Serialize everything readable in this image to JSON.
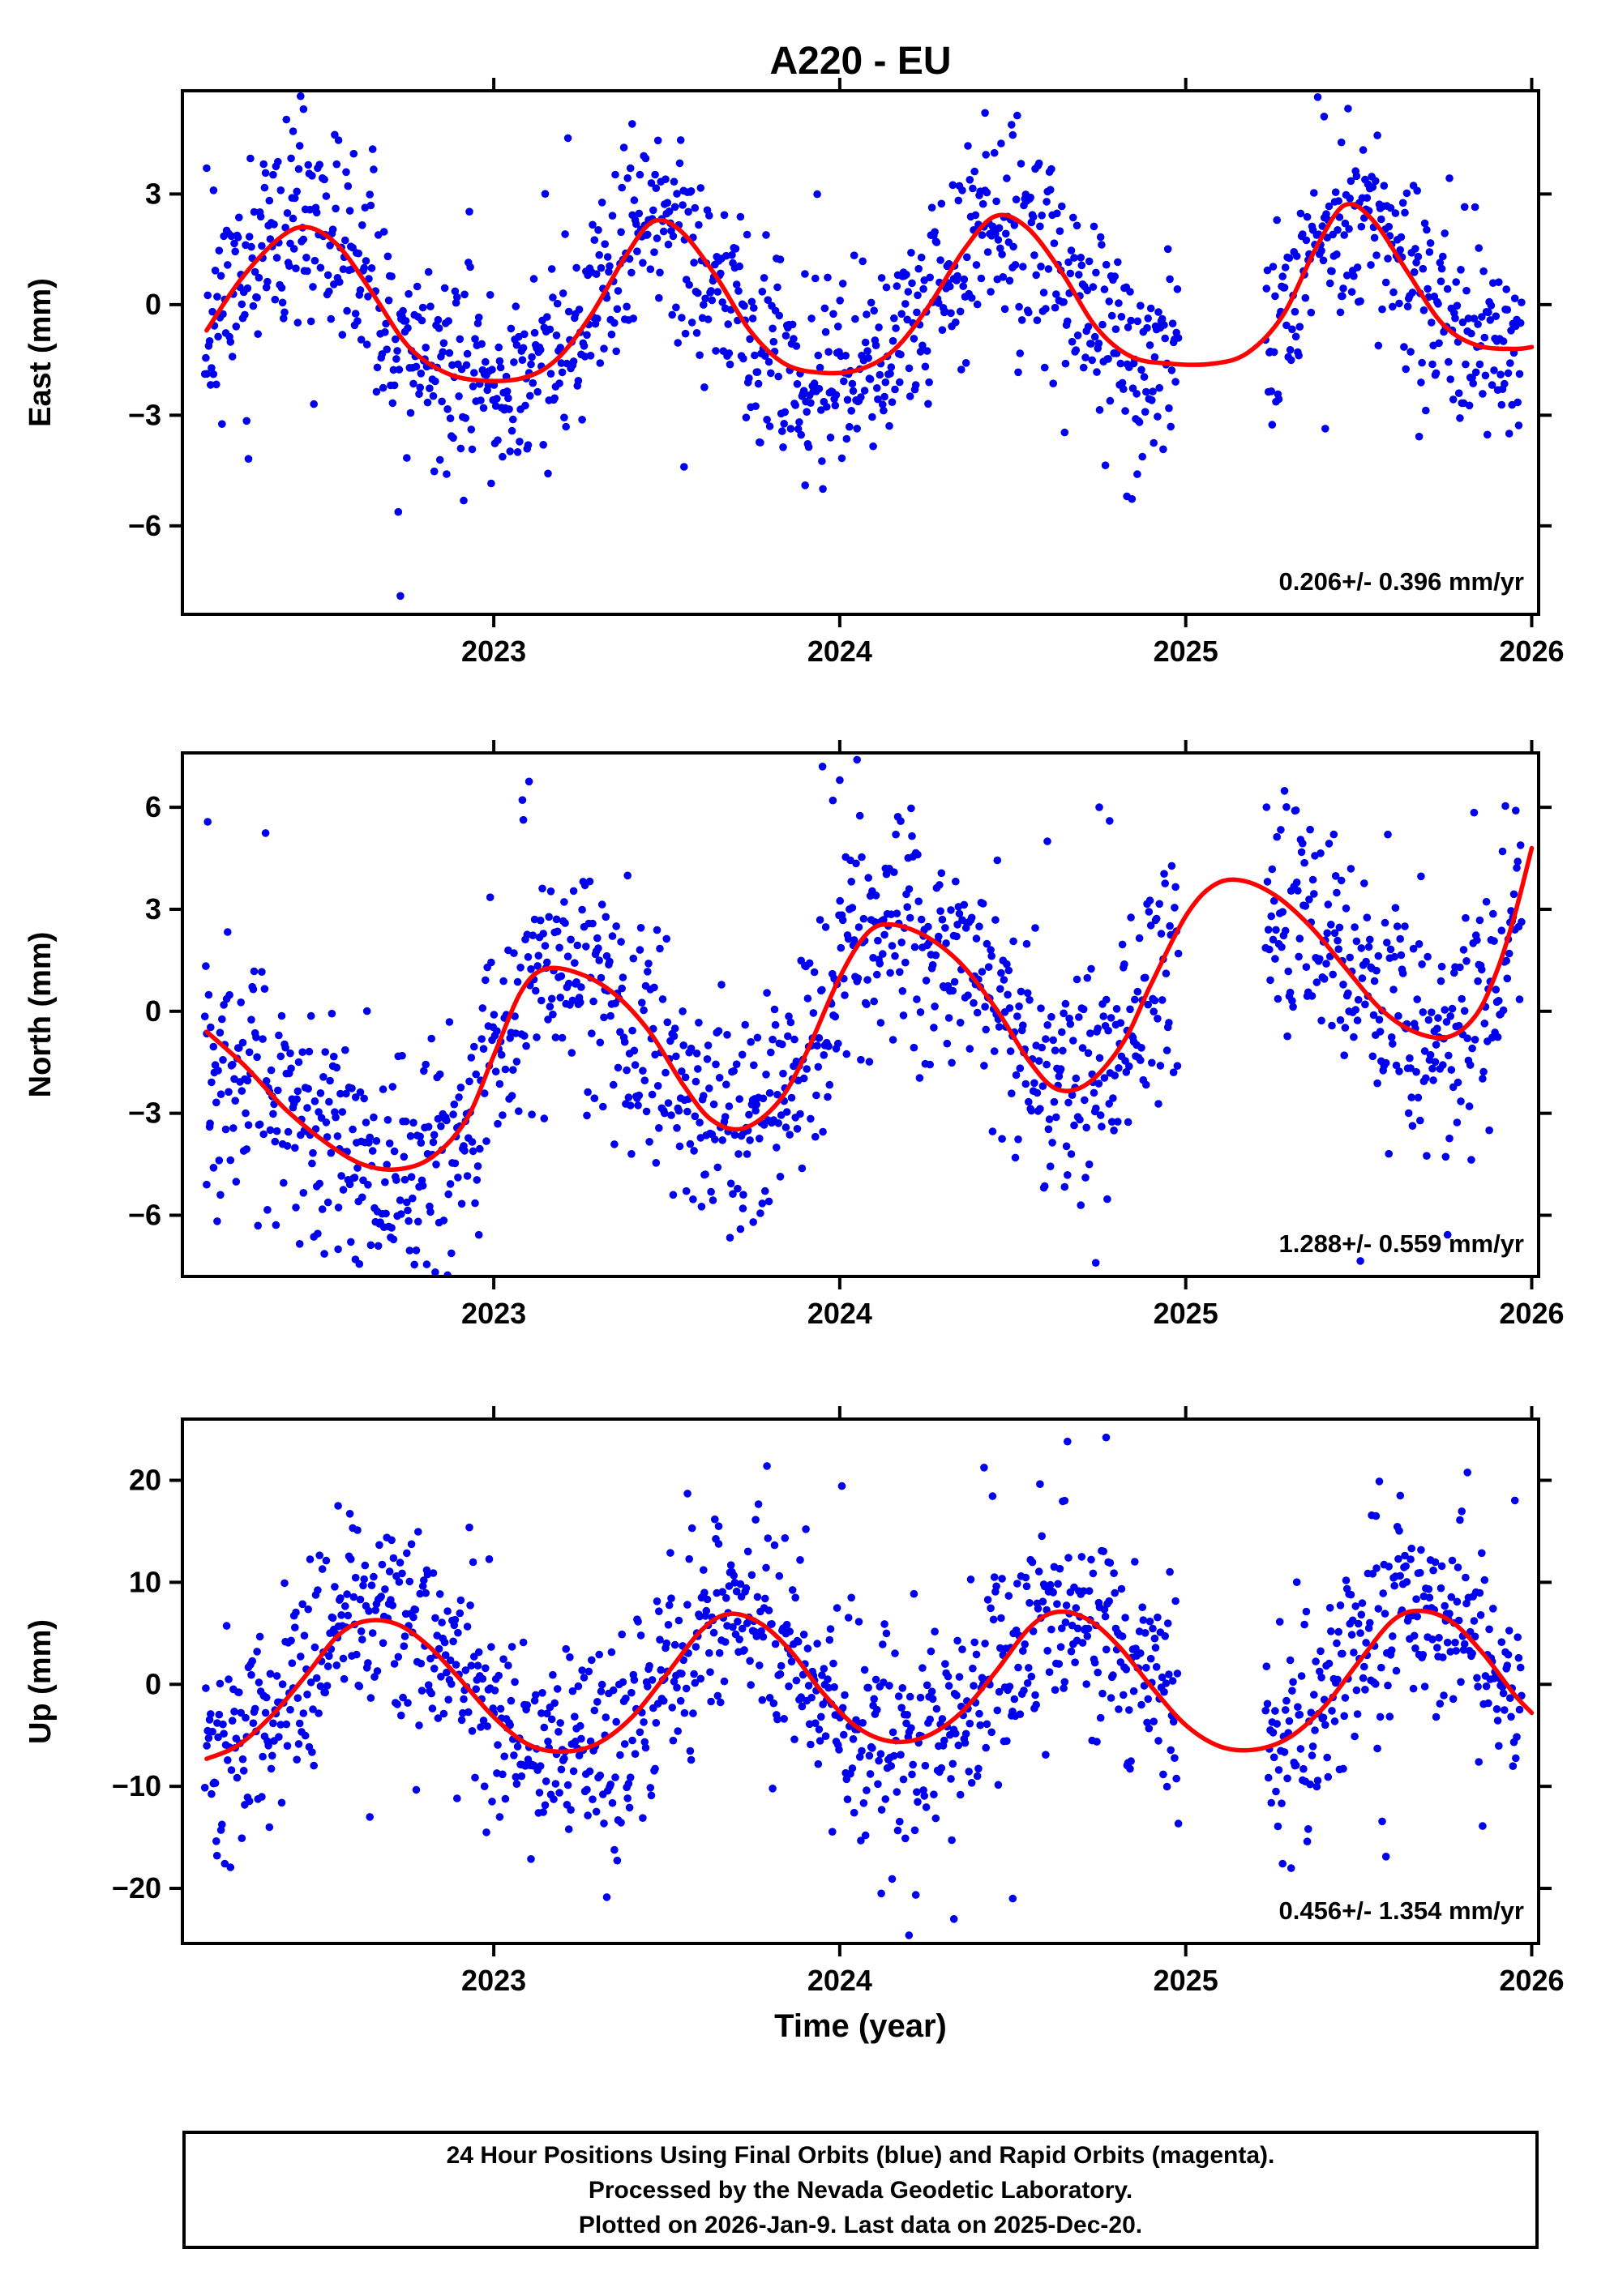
{
  "caption": {
    "lines": [
      "24 Hour Positions Using Final Orbits (blue) and Rapid Orbits (magenta).",
      "Processed by the Nevada Geodetic Laboratory.",
      "Plotted on 2026-Jan-9. Last data on 2025-Dec-20."
    ]
  },
  "chart_data": {
    "type": "scatter",
    "title": "A220 - EU",
    "xlabel": "Time (year)",
    "colors": {
      "points": "#0000ee",
      "curve": "#ff0000",
      "frame": "#000000"
    },
    "x_axis": {
      "min": 2022.1,
      "max": 2026.02,
      "ticks": [
        {
          "v": 2023,
          "label": "2023"
        },
        {
          "v": 2024,
          "label": "2024"
        },
        {
          "v": 2025,
          "label": "2025"
        },
        {
          "v": 2026,
          "label": "2026"
        }
      ]
    },
    "data_gap": [
      2024.98,
      2025.23
    ],
    "sampling": {
      "start": 2022.165,
      "end": 2025.972,
      "step_days": 1,
      "outlier_prob": 0.02,
      "outlier_scale": 2.6
    },
    "panels": [
      {
        "id": "east",
        "ylabel": "East (mm)",
        "annotation": "0.206+/- 0.396 mm/yr",
        "rate": 0.206,
        "rate_sigma": 0.396,
        "ylim": [
          -8.4,
          5.8
        ],
        "yticks": [
          {
            "v": 3,
            "label": "3"
          },
          {
            "v": 0,
            "label": "0"
          },
          {
            "v": -3,
            "label": "−3"
          },
          {
            "v": -6,
            "label": "−6"
          }
        ],
        "noise_sigma": 1.35,
        "seed": 11,
        "curve": [
          [
            2022.17,
            -0.7
          ],
          [
            2022.27,
            0.7
          ],
          [
            2022.38,
            1.8
          ],
          [
            2022.46,
            2.1
          ],
          [
            2022.55,
            1.6
          ],
          [
            2022.65,
            0.3
          ],
          [
            2022.75,
            -1.1
          ],
          [
            2022.85,
            -1.8
          ],
          [
            2022.95,
            -2.05
          ],
          [
            2023.08,
            -2.0
          ],
          [
            2023.18,
            -1.5
          ],
          [
            2023.28,
            -0.3
          ],
          [
            2023.38,
            1.3
          ],
          [
            2023.46,
            2.25
          ],
          [
            2023.54,
            2.0
          ],
          [
            2023.64,
            0.8
          ],
          [
            2023.74,
            -0.7
          ],
          [
            2023.84,
            -1.6
          ],
          [
            2023.95,
            -1.85
          ],
          [
            2024.06,
            -1.75
          ],
          [
            2024.16,
            -1.2
          ],
          [
            2024.26,
            0.0
          ],
          [
            2024.36,
            1.5
          ],
          [
            2024.45,
            2.4
          ],
          [
            2024.54,
            2.1
          ],
          [
            2024.64,
            0.9
          ],
          [
            2024.74,
            -0.6
          ],
          [
            2024.84,
            -1.4
          ],
          [
            2024.95,
            -1.6
          ],
          [
            2025.08,
            -1.6
          ],
          [
            2025.18,
            -1.3
          ],
          [
            2025.28,
            -0.3
          ],
          [
            2025.38,
            1.6
          ],
          [
            2025.46,
            2.7
          ],
          [
            2025.54,
            2.3
          ],
          [
            2025.64,
            0.9
          ],
          [
            2025.74,
            -0.5
          ],
          [
            2025.84,
            -1.1
          ],
          [
            2025.95,
            -1.2
          ],
          [
            2026.0,
            -1.15
          ]
        ],
        "extra_points": [
          [
            2022.73,
            -7.9
          ],
          [
            2022.17,
            3.7
          ],
          [
            2022.19,
            3.1
          ],
          [
            2022.42,
            4.7
          ],
          [
            2022.45,
            5.3
          ],
          [
            2023.4,
            4.9
          ],
          [
            2024.42,
            5.2
          ],
          [
            2024.5,
            4.6
          ],
          [
            2025.4,
            5.1
          ],
          [
            2025.45,
            4.4
          ],
          [
            2024.83,
            -5.2
          ],
          [
            2024.86,
            -4.6
          ],
          [
            2023.9,
            -4.9
          ],
          [
            2023.55,
            -4.4
          ]
        ]
      },
      {
        "id": "north",
        "ylabel": "North (mm)",
        "annotation": "1.288+/- 0.559 mm/yr",
        "rate": 1.288,
        "rate_sigma": 0.559,
        "ylim": [
          -7.8,
          7.6
        ],
        "yticks": [
          {
            "v": 6,
            "label": "6"
          },
          {
            "v": 3,
            "label": "3"
          },
          {
            "v": 0,
            "label": "0"
          },
          {
            "v": -3,
            "label": "−3"
          },
          {
            "v": -6,
            "label": "−6"
          }
        ],
        "noise_sigma": 1.7,
        "seed": 22,
        "curve": [
          [
            2022.17,
            -0.6
          ],
          [
            2022.28,
            -1.6
          ],
          [
            2022.4,
            -2.9
          ],
          [
            2022.52,
            -3.9
          ],
          [
            2022.62,
            -4.5
          ],
          [
            2022.72,
            -4.65
          ],
          [
            2022.82,
            -4.3
          ],
          [
            2022.92,
            -3.2
          ],
          [
            2023.0,
            -1.3
          ],
          [
            2023.08,
            0.6
          ],
          [
            2023.15,
            1.25
          ],
          [
            2023.25,
            1.1
          ],
          [
            2023.35,
            0.5
          ],
          [
            2023.45,
            -0.6
          ],
          [
            2023.55,
            -2.2
          ],
          [
            2023.63,
            -3.2
          ],
          [
            2023.72,
            -3.45
          ],
          [
            2023.82,
            -2.7
          ],
          [
            2023.9,
            -1.3
          ],
          [
            2024.0,
            1.0
          ],
          [
            2024.08,
            2.3
          ],
          [
            2024.15,
            2.55
          ],
          [
            2024.25,
            2.2
          ],
          [
            2024.35,
            1.4
          ],
          [
            2024.45,
            0.1
          ],
          [
            2024.55,
            -1.5
          ],
          [
            2024.63,
            -2.3
          ],
          [
            2024.72,
            -2.1
          ],
          [
            2024.82,
            -0.9
          ],
          [
            2024.9,
            0.8
          ],
          [
            2025.0,
            2.8
          ],
          [
            2025.08,
            3.7
          ],
          [
            2025.16,
            3.85
          ],
          [
            2025.26,
            3.4
          ],
          [
            2025.36,
            2.5
          ],
          [
            2025.46,
            1.3
          ],
          [
            2025.56,
            0.1
          ],
          [
            2025.66,
            -0.6
          ],
          [
            2025.76,
            -0.75
          ],
          [
            2025.84,
            -0.1
          ],
          [
            2025.9,
            1.2
          ],
          [
            2025.95,
            2.8
          ],
          [
            2026.0,
            4.8
          ]
        ],
        "extra_points": [
          [
            2024.74,
            -7.4
          ],
          [
            2022.17,
            -5.1
          ],
          [
            2022.19,
            -4.6
          ],
          [
            2022.21,
            -5.4
          ],
          [
            2022.18,
            -3.3
          ],
          [
            2023.95,
            7.2
          ],
          [
            2024.0,
            6.8
          ],
          [
            2024.05,
            7.4
          ],
          [
            2023.98,
            6.2
          ],
          [
            2024.6,
            5.0
          ],
          [
            2024.75,
            6.0
          ],
          [
            2024.78,
            5.6
          ],
          [
            2022.55,
            -7.0
          ],
          [
            2022.6,
            -7.3
          ],
          [
            2023.75,
            -6.2
          ],
          [
            2023.72,
            -5.8
          ]
        ]
      },
      {
        "id": "up",
        "ylabel": "Up (mm)",
        "annotation": "0.456+/- 1.354 mm/yr",
        "rate": 0.456,
        "rate_sigma": 1.354,
        "ylim": [
          -25.4,
          26.0
        ],
        "yticks": [
          {
            "v": 20,
            "label": "20"
          },
          {
            "v": 10,
            "label": "10"
          },
          {
            "v": 0,
            "label": "0"
          },
          {
            "v": -10,
            "label": "−10"
          },
          {
            "v": -20,
            "label": "−20"
          }
        ],
        "noise_sigma": 5.0,
        "seed": 33,
        "curve": [
          [
            2022.17,
            -7.3
          ],
          [
            2022.26,
            -6.0
          ],
          [
            2022.36,
            -3.0
          ],
          [
            2022.46,
            1.0
          ],
          [
            2022.55,
            4.8
          ],
          [
            2022.63,
            6.2
          ],
          [
            2022.72,
            5.9
          ],
          [
            2022.81,
            3.8
          ],
          [
            2022.9,
            0.6
          ],
          [
            2023.0,
            -3.2
          ],
          [
            2023.1,
            -5.9
          ],
          [
            2023.2,
            -6.6
          ],
          [
            2023.3,
            -5.8
          ],
          [
            2023.4,
            -3.2
          ],
          [
            2023.5,
            1.0
          ],
          [
            2023.6,
            5.3
          ],
          [
            2023.68,
            6.9
          ],
          [
            2023.77,
            6.0
          ],
          [
            2023.86,
            3.2
          ],
          [
            2023.95,
            -0.8
          ],
          [
            2024.05,
            -4.2
          ],
          [
            2024.15,
            -5.6
          ],
          [
            2024.25,
            -5.1
          ],
          [
            2024.35,
            -2.8
          ],
          [
            2024.45,
            1.2
          ],
          [
            2024.55,
            5.6
          ],
          [
            2024.63,
            7.1
          ],
          [
            2024.72,
            6.3
          ],
          [
            2024.81,
            3.6
          ],
          [
            2024.9,
            -0.2
          ],
          [
            2025.0,
            -4.0
          ],
          [
            2025.1,
            -6.1
          ],
          [
            2025.2,
            -6.4
          ],
          [
            2025.3,
            -5.2
          ],
          [
            2025.4,
            -2.2
          ],
          [
            2025.5,
            2.2
          ],
          [
            2025.6,
            6.3
          ],
          [
            2025.68,
            7.2
          ],
          [
            2025.77,
            6.1
          ],
          [
            2025.86,
            3.0
          ],
          [
            2025.95,
            -1.0
          ],
          [
            2026.0,
            -2.8
          ]
        ],
        "extra_points": [
          [
            2024.2,
            -24.6
          ],
          [
            2024.77,
            24.2
          ],
          [
            2024.33,
            -23.0
          ],
          [
            2024.12,
            -20.5
          ],
          [
            2022.2,
            -16.8
          ],
          [
            2025.62,
            18.5
          ],
          [
            2023.56,
            18.7
          ],
          [
            2024.5,
            -21.0
          ],
          [
            2022.55,
            17.5
          ],
          [
            2023.65,
            15.5
          ],
          [
            2025.55,
            16.5
          ],
          [
            2024.65,
            18.0
          ]
        ]
      }
    ]
  }
}
